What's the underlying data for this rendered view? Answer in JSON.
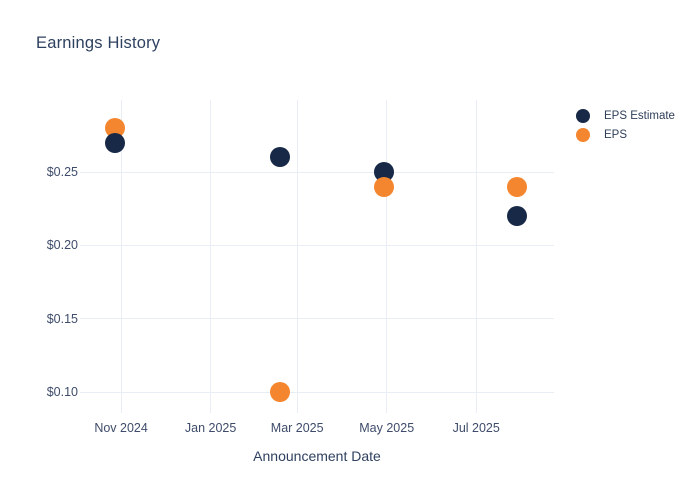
{
  "chart_data": {
    "type": "scatter",
    "title": "Earnings History",
    "xlabel": "Announcement Date",
    "ylabel": "",
    "grid": true,
    "legend_position": "outside-top-right",
    "background_color": "#ffffff",
    "gridline_color": "#e9edf5",
    "x_axis": {
      "unit": "days since 2024-10-01 (read from axis ticks)",
      "tick_labels": [
        "Nov 2024",
        "Jan 2025",
        "Mar 2025",
        "May 2025",
        "Jul 2025"
      ],
      "tick_days": [
        31,
        92,
        151,
        212,
        273
      ],
      "range_days": [
        3,
        326
      ]
    },
    "y_axis": {
      "tick_labels": [
        "$0.10",
        "$0.15",
        "$0.20",
        "$0.25"
      ],
      "tick_values": [
        0.1,
        0.15,
        0.2,
        0.25
      ],
      "range": [
        0.0857,
        0.2991
      ]
    },
    "series": [
      {
        "name": "EPS Estimate",
        "color": "#172946",
        "marker": "circle",
        "points": [
          {
            "day": 27,
            "x_label": "late Oct 2024",
            "value": 0.27
          },
          {
            "day": 139,
            "x_label": "mid Feb 2025",
            "value": 0.26
          },
          {
            "day": 210,
            "x_label": "late Apr 2025",
            "value": 0.25
          },
          {
            "day": 301,
            "x_label": "late Jul 2025",
            "value": 0.22
          }
        ]
      },
      {
        "name": "EPS",
        "color": "#f4862f",
        "marker": "circle",
        "points": [
          {
            "day": 27,
            "x_label": "late Oct 2024",
            "value": 0.28
          },
          {
            "day": 139,
            "x_label": "mid Feb 2025",
            "value": 0.1
          },
          {
            "day": 210,
            "x_label": "late Apr 2025",
            "value": 0.24
          },
          {
            "day": 301,
            "x_label": "late Jul 2025",
            "value": 0.24
          }
        ]
      }
    ]
  }
}
